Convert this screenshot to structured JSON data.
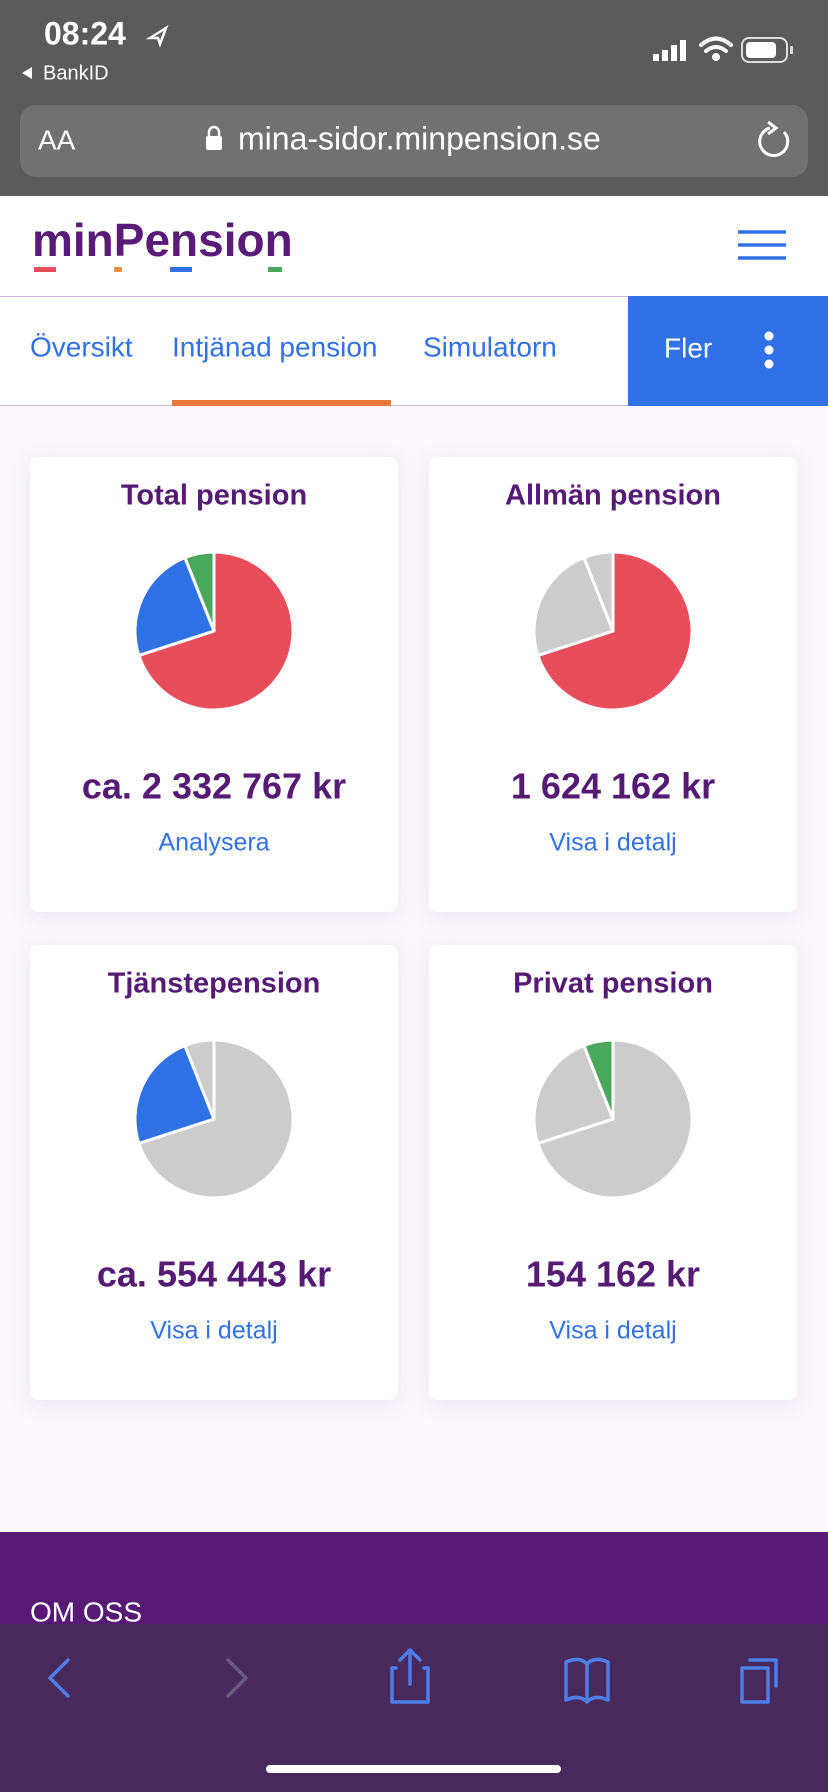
{
  "status_bar": {
    "time": "08:24",
    "back_app": "BankID"
  },
  "browser": {
    "text_size": "AA",
    "url": "mina-sidor.minpension.se"
  },
  "header": {
    "logo": "minPension"
  },
  "tabs": [
    "Översikt",
    "Intjänad pension",
    "Simulatorn",
    "Fler"
  ],
  "pie_shares": [
    70,
    24,
    6
  ],
  "cards": [
    {
      "title": "Total pension",
      "amount": "ca. 2 332 767 kr",
      "link": "Analysera",
      "colors": [
        "#e84d5b",
        "#3171e6",
        "#4aa85c"
      ]
    },
    {
      "title": "Allmän pension",
      "amount": "1 624 162 kr",
      "link": "Visa i detalj",
      "colors": [
        "#e84d5b",
        "#cccccc",
        "#cccccc"
      ]
    },
    {
      "title": "Tjänstepension",
      "amount": "ca. 554 443 kr",
      "link": "Visa i detalj",
      "colors": [
        "#cccccc",
        "#3171e6",
        "#cccccc"
      ]
    },
    {
      "title": "Privat pension",
      "amount": "154 162 kr",
      "link": "Visa i detalj",
      "colors": [
        "#cccccc",
        "#cccccc",
        "#4aa85c"
      ]
    }
  ],
  "footer": {
    "heading": "OM OSS"
  }
}
